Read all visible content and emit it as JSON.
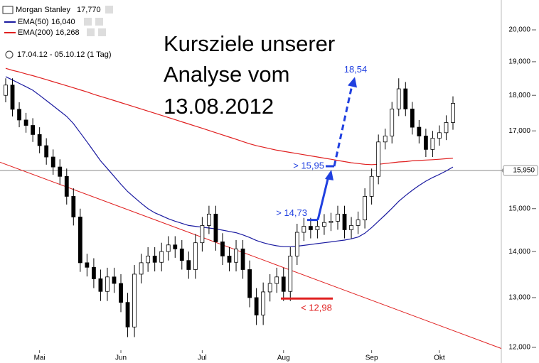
{
  "chart_data": {
    "type": "candlestick",
    "title": "Morgan Stanley",
    "title_value_label": "17,770",
    "date_range": "17.04.12 - 05.10.12 (1 Tag)",
    "headline": [
      "Kursziele unserer",
      "Analyse vom",
      "13.08.2012"
    ],
    "log_scale": true,
    "ylim": [
      20984,
      11702
    ],
    "yticks": [
      {
        "value": 20000,
        "label": "20,000"
      },
      {
        "value": 19000,
        "label": "19,000"
      },
      {
        "value": 18000,
        "label": "18,000"
      },
      {
        "value": 17000,
        "label": "17,000"
      },
      {
        "value": 15000,
        "label": "15,000"
      },
      {
        "value": 14000,
        "label": "14,000"
      },
      {
        "value": 13000,
        "label": "13,000"
      },
      {
        "value": 12000,
        "label": "12,000"
      }
    ],
    "price_line": {
      "value": 15950,
      "label": "15,950",
      "color": "#888888"
    },
    "categories": [
      null,
      null,
      null,
      null,
      null,
      "Mai",
      null,
      null,
      null,
      null,
      null,
      null,
      null,
      null,
      null,
      null,
      null,
      "Jun",
      null,
      null,
      null,
      null,
      null,
      null,
      null,
      null,
      null,
      null,
      null,
      "Jul",
      null,
      null,
      null,
      null,
      null,
      null,
      null,
      null,
      null,
      null,
      null,
      "Aug",
      null,
      null,
      null,
      null,
      null,
      null,
      null,
      null,
      null,
      null,
      null,
      null,
      "Sep",
      null,
      null,
      null,
      null,
      null,
      null,
      null,
      null,
      null,
      "Okt",
      null,
      null
    ],
    "open": [
      18000,
      18300,
      17600,
      17300,
      17150,
      16900,
      16600,
      16300,
      16040,
      15800,
      15300,
      14800,
      13750,
      13650,
      13400,
      13130,
      13440,
      13300,
      12900,
      12400,
      13500,
      13750,
      13900,
      13760,
      14000,
      14150,
      14060,
      13800,
      13600,
      14200,
      14600,
      14870,
      14220,
      13900,
      13760,
      14060,
      13600,
      13000,
      12640,
      13120,
      13300,
      13440,
      13130,
      13900,
      14440,
      14580,
      14500,
      14580,
      14670,
      14700,
      14870,
      14500,
      14600,
      14730,
      15300,
      15800,
      16700,
      16860,
      17610,
      18190,
      17610,
      17100,
      16860,
      16500,
      16800,
      16950,
      17230
    ],
    "high": [
      18500,
      18500,
      17800,
      17500,
      17350,
      17100,
      16800,
      16500,
      16240,
      16000,
      15500,
      15000,
      13950,
      13850,
      13600,
      13640,
      13640,
      13500,
      13100,
      13700,
      13950,
      14100,
      14100,
      14200,
      14350,
      14350,
      14260,
      14000,
      14400,
      14800,
      15070,
      15070,
      14420,
      14100,
      14260,
      14260,
      13800,
      13200,
      13320,
      13500,
      13640,
      13640,
      14100,
      14640,
      14780,
      14780,
      14780,
      14870,
      14900,
      15070,
      15070,
      14800,
      14930,
      15500,
      16000,
      16900,
      17060,
      17810,
      18500,
      18390,
      17810,
      17300,
      17060,
      17000,
      17150,
      17430,
      17970
    ],
    "low": [
      17800,
      17400,
      17100,
      16950,
      16700,
      16400,
      16100,
      15840,
      15600,
      15100,
      14600,
      13550,
      13450,
      13200,
      12930,
      12930,
      13100,
      12700,
      12200,
      12200,
      13300,
      13550,
      13560,
      13560,
      13800,
      13860,
      13600,
      13400,
      13400,
      14000,
      14400,
      14020,
      13700,
      13560,
      13560,
      13400,
      12800,
      12440,
      12440,
      12920,
      13100,
      12930,
      12930,
      13700,
      14240,
      14300,
      14300,
      14380,
      14470,
      14500,
      14300,
      14300,
      14400,
      14530,
      15100,
      15600,
      16500,
      16660,
      17410,
      17410,
      16900,
      16660,
      16300,
      16300,
      16600,
      16750,
      17030
    ],
    "close": [
      18300,
      17600,
      17300,
      17150,
      16900,
      16600,
      16300,
      16040,
      15800,
      15300,
      14800,
      13750,
      13650,
      13400,
      13130,
      13440,
      13300,
      12900,
      12400,
      13500,
      13750,
      13900,
      13760,
      14000,
      14150,
      14060,
      13800,
      13600,
      14200,
      14600,
      14870,
      14220,
      13900,
      13760,
      14060,
      13600,
      13000,
      12640,
      13120,
      13300,
      13440,
      13130,
      13900,
      14440,
      14580,
      14500,
      14580,
      14670,
      14700,
      14870,
      14500,
      14600,
      14730,
      15300,
      15800,
      16700,
      16860,
      17610,
      18190,
      17610,
      17100,
      16860,
      16500,
      16800,
      16950,
      17230,
      17770
    ],
    "series": [
      {
        "name": "EMA(50)",
        "value_label": "16,040",
        "color": "#1a1aa0",
        "values": [
          18550,
          18450,
          18350,
          18250,
          18150,
          18000,
          17850,
          17700,
          17550,
          17400,
          17200,
          16950,
          16700,
          16450,
          16200,
          16000,
          15800,
          15600,
          15420,
          15270,
          15130,
          15000,
          14900,
          14830,
          14760,
          14700,
          14650,
          14600,
          14580,
          14560,
          14540,
          14520,
          14490,
          14460,
          14430,
          14380,
          14320,
          14250,
          14200,
          14160,
          14130,
          14110,
          14110,
          14120,
          14140,
          14160,
          14180,
          14200,
          14220,
          14240,
          14260,
          14290,
          14330,
          14420,
          14550,
          14700,
          14850,
          15010,
          15180,
          15320,
          15450,
          15570,
          15680,
          15770,
          15850,
          15940,
          16040
        ]
      },
      {
        "name": "EMA(200)",
        "value_label": "16,268",
        "color": "#e02020",
        "values": [
          18800,
          18740,
          18690,
          18630,
          18580,
          18520,
          18460,
          18400,
          18340,
          18280,
          18220,
          18160,
          18100,
          18030,
          17970,
          17910,
          17850,
          17790,
          17730,
          17670,
          17610,
          17550,
          17490,
          17430,
          17370,
          17310,
          17250,
          17190,
          17130,
          17070,
          17010,
          16950,
          16890,
          16830,
          16770,
          16710,
          16650,
          16600,
          16560,
          16520,
          16480,
          16450,
          16420,
          16390,
          16360,
          16330,
          16300,
          16270,
          16240,
          16210,
          16180,
          16150,
          16130,
          16110,
          16100,
          16110,
          16130,
          16150,
          16170,
          16180,
          16200,
          16210,
          16220,
          16230,
          16240,
          16255,
          16268
        ]
      }
    ],
    "trendline": {
      "color": "#e02020",
      "values": [
        16110,
        12330
      ]
    },
    "targets": [
      {
        "label": "18,54",
        "value": 18540,
        "color": "#2040e0"
      },
      {
        "label": "> 15,95",
        "value": 15950,
        "color": "#2040e0"
      },
      {
        "label": "> 14,73",
        "value": 14730,
        "color": "#2040e0"
      },
      {
        "label": "< 12,98",
        "value": 12980,
        "color": "#e02020"
      }
    ]
  }
}
